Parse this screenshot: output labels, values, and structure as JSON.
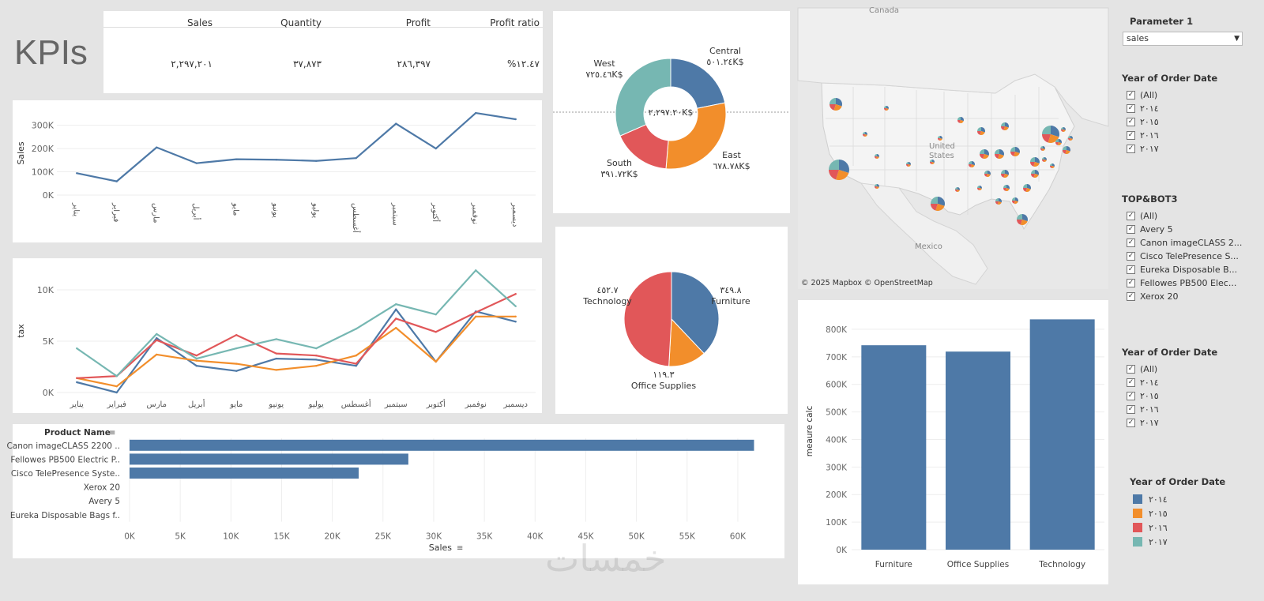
{
  "colors": {
    "y2014": "#4e79a7",
    "y2015": "#f28e2b",
    "y2016": "#e15759",
    "y2017": "#76b7b2",
    "grid": "#eeeeee",
    "axis": "#666666"
  },
  "kpi": {
    "title": "KPIs",
    "headers": [
      "Sales",
      "Quantity",
      "Profit",
      "Profit ratio"
    ],
    "values": [
      "٢,٢٩٧,٢٠١",
      "٣٧,٨٧٣",
      "٢٨٦,٣٩٧",
      "%١٢.٤٧"
    ]
  },
  "months": [
    "يناير",
    "فبراير",
    "مارس",
    "أبريل",
    "مايو",
    "يونيو",
    "يوليو",
    "أغسطس",
    "سبتمبر",
    "أكتوبر",
    "نوفمبر",
    "ديسمبر"
  ],
  "sales_chart": {
    "chart_data": {
      "type": "line",
      "ylabel": "Sales",
      "ylim": [
        0,
        360000
      ],
      "yticks": [
        0,
        100000,
        200000,
        300000
      ],
      "ytick_labels": [
        "0K",
        "100K",
        "200K",
        "300K"
      ],
      "values": [
        94000,
        59000,
        205000,
        137000,
        154000,
        152000,
        147000,
        159000,
        307000,
        200000,
        353000,
        326000
      ]
    }
  },
  "tax_chart": {
    "chart_data": {
      "type": "line",
      "ylabel": "tax",
      "ylim": [
        0,
        12000
      ],
      "yticks": [
        0,
        5000,
        10000
      ],
      "ytick_labels": [
        "0K",
        "5K",
        "10K"
      ],
      "series": [
        {
          "name": "٢٠١٤",
          "color_key": "y2014",
          "values": [
            1000,
            0,
            5300,
            2600,
            2100,
            3300,
            3200,
            2600,
            8100,
            3000,
            7900,
            6900
          ]
        },
        {
          "name": "٢٠١٥",
          "color_key": "y2015",
          "values": [
            1400,
            600,
            3700,
            3100,
            2800,
            2200,
            2600,
            3600,
            6300,
            3000,
            7400,
            7400
          ]
        },
        {
          "name": "٢٠١٦",
          "color_key": "y2016",
          "values": [
            1400,
            1600,
            5100,
            3600,
            5600,
            3800,
            3600,
            2800,
            7200,
            5900,
            7800,
            9600
          ]
        },
        {
          "name": "٢٠١٧",
          "color_key": "y2017",
          "values": [
            4300,
            1600,
            5700,
            3300,
            4300,
            5200,
            4300,
            6200,
            8600,
            7600,
            11900,
            8400
          ]
        }
      ]
    }
  },
  "region_donut": {
    "center_label": "٢,٢٩٧.٢٠K$",
    "chart_data": {
      "type": "pie",
      "categories": [
        "Central",
        "East",
        "South",
        "West"
      ],
      "values": [
        501.24,
        678.78,
        391.72,
        725.46
      ],
      "value_labels": [
        "٥٠١.٢٤K$",
        "٦٧٨.٧٨K$",
        "٣٩١.٧٢K$",
        "٧٢٥.٤٦K$"
      ],
      "color_keys": [
        "y2014",
        "y2015",
        "y2016",
        "y2017"
      ]
    }
  },
  "category_pie": {
    "chart_data": {
      "type": "pie",
      "categories": [
        "Furniture",
        "Office Supplies",
        "Technology"
      ],
      "values": [
        349.8,
        119.3,
        452.7
      ],
      "value_labels": [
        "٣٤٩.٨",
        "١١٩.٣",
        "٤٥٢.٧"
      ],
      "color_keys": [
        "y2014",
        "y2015",
        "y2016"
      ]
    }
  },
  "products_chart": {
    "chart_data": {
      "type": "bar",
      "orientation": "horizontal",
      "ylabel": "Product Name",
      "xlabel": "Sales",
      "categories": [
        "Canon imageCLASS 2200 ..",
        "Fellowes PB500 Electric P..",
        "Cisco TelePresence Syste..",
        "Xerox 20",
        "Avery 5",
        "Eureka Disposable Bags f.."
      ],
      "values": [
        61600,
        27500,
        22600,
        0,
        0,
        0
      ],
      "xlim": [
        0,
        62500
      ],
      "xticks": [
        0,
        5000,
        10000,
        15000,
        20000,
        25000,
        30000,
        35000,
        40000,
        45000,
        50000,
        55000,
        60000
      ],
      "xtick_labels": [
        "0K",
        "5K",
        "10K",
        "15K",
        "20K",
        "25K",
        "30K",
        "35K",
        "40K",
        "45K",
        "50K",
        "55K",
        "60K"
      ]
    }
  },
  "measure_chart": {
    "chart_data": {
      "type": "bar",
      "ylabel": "meaure calc",
      "categories": [
        "Furniture",
        "Office Supplies",
        "Technology"
      ],
      "values": [
        742000,
        719000,
        836000
      ],
      "ylim": [
        0,
        860000
      ],
      "yticks": [
        0,
        100000,
        200000,
        300000,
        400000,
        500000,
        600000,
        700000,
        800000
      ],
      "ytick_labels": [
        "0K",
        "100K",
        "200K",
        "300K",
        "400K",
        "500K",
        "600K",
        "700K",
        "800K"
      ]
    }
  },
  "map": {
    "labels": {
      "canada": "Canada",
      "us_line1": "United",
      "us_line2": "States",
      "mexico": "Mexico"
    },
    "attribution": "© 2025 Mapbox © OpenStreetMap"
  },
  "filters": {
    "parameter": {
      "title": "Parameter 1",
      "value": "sales"
    },
    "year1": {
      "title": "Year of Order Date",
      "options": [
        "(All)",
        "٢٠١٤",
        "٢٠١٥",
        "٢٠١٦",
        "٢٠١٧"
      ]
    },
    "topbot": {
      "title": "TOP&BOT3",
      "options": [
        "(All)",
        "Avery 5",
        "Canon imageCLASS 2...",
        "Cisco TelePresence S...",
        "Eureka Disposable B...",
        "Fellowes PB500 Elec...",
        "Xerox 20"
      ]
    },
    "year2": {
      "title": "Year of Order Date",
      "options": [
        "(All)",
        "٢٠١٤",
        "٢٠١٥",
        "٢٠١٦",
        "٢٠١٧"
      ]
    },
    "legend": {
      "title": "Year of Order Date",
      "items": [
        "٢٠١٤",
        "٢٠١٥",
        "٢٠١٦",
        "٢٠١٧"
      ],
      "color_keys": [
        "y2014",
        "y2015",
        "y2016",
        "y2017"
      ]
    }
  },
  "watermark": "خمسات"
}
